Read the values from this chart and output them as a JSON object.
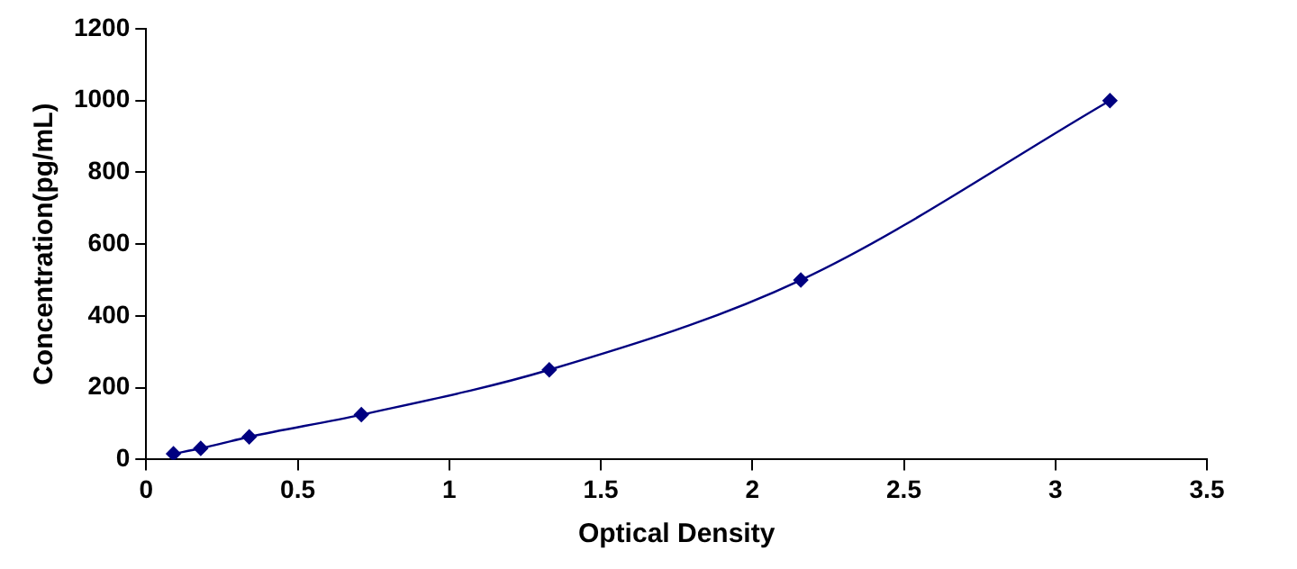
{
  "chart_data": {
    "type": "line",
    "xlabel": "Optical Density",
    "ylabel": "Concentration(pg/mL)",
    "x": [
      0.09,
      0.18,
      0.34,
      0.71,
      1.33,
      2.16,
      3.18
    ],
    "series": [
      {
        "color": "#000080",
        "values": [
          16,
          31,
          63,
          125,
          250,
          500,
          1000
        ]
      }
    ],
    "xlim": [
      0,
      3.5
    ],
    "xticks": [
      0,
      0.5,
      1,
      1.5,
      2,
      2.5,
      3,
      3.5
    ],
    "ylim": [
      0,
      1200
    ],
    "yticks": [
      0,
      200,
      400,
      600,
      800,
      1000,
      1200
    ],
    "grid": false,
    "legend": false,
    "marker": "diamond",
    "line_style": "solid"
  }
}
